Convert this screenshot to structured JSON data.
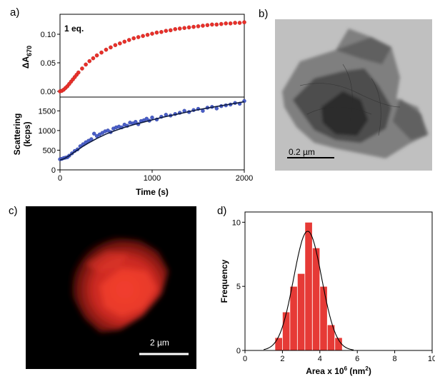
{
  "panels": {
    "a": "a)",
    "b": "b)",
    "c": "c)",
    "d": "d)"
  },
  "chart_data": [
    {
      "id": "a-top",
      "type": "scatter",
      "annotation": "1 eq.",
      "ylabel": "ΔA",
      "ylabel_sub": "670",
      "xlim": [
        0,
        2000
      ],
      "ylim": [
        -0.01,
        0.135
      ],
      "yticks": [
        "0.00",
        "0.05",
        "0.10"
      ],
      "ytick_values": [
        0.0,
        0.05,
        0.1
      ],
      "marker_color": "#e8302a",
      "series": [
        {
          "x": [
            0,
            20,
            40,
            60,
            80,
            100,
            120,
            140,
            160,
            180,
            200,
            240,
            280,
            320,
            360,
            400,
            450,
            500,
            550,
            600,
            650,
            700,
            750,
            800,
            850,
            900,
            950,
            1000,
            1050,
            1100,
            1150,
            1200,
            1250,
            1300,
            1350,
            1400,
            1450,
            1500,
            1550,
            1600,
            1650,
            1700,
            1750,
            1800,
            1850,
            1900,
            1950,
            2000
          ],
          "y": [
            0.0,
            0.001,
            0.003,
            0.006,
            0.009,
            0.013,
            0.017,
            0.021,
            0.025,
            0.029,
            0.033,
            0.04,
            0.047,
            0.053,
            0.058,
            0.063,
            0.068,
            0.073,
            0.077,
            0.081,
            0.084,
            0.087,
            0.09,
            0.093,
            0.095,
            0.097,
            0.099,
            0.101,
            0.103,
            0.104,
            0.106,
            0.107,
            0.109,
            0.11,
            0.111,
            0.112,
            0.113,
            0.114,
            0.115,
            0.116,
            0.117,
            0.117,
            0.118,
            0.119,
            0.119,
            0.12,
            0.12,
            0.121
          ]
        }
      ]
    },
    {
      "id": "a-bottom",
      "type": "scatter",
      "xlabel": "Time (s)",
      "ylabel_line1": "Scattering",
      "ylabel_line2": "(kcps)",
      "xlim": [
        0,
        2000
      ],
      "ylim": [
        0,
        1850
      ],
      "xticks": [
        "0",
        "1000",
        "2000"
      ],
      "xtick_values": [
        0,
        1000,
        2000
      ],
      "yticks": [
        "0",
        "500",
        "1000",
        "1500"
      ],
      "ytick_values": [
        0,
        500,
        1000,
        1500
      ],
      "marker_color": "#4a5fc7",
      "fit_color": "#0d1a40",
      "series": [
        {
          "x": [
            0,
            20,
            40,
            60,
            80,
            100,
            130,
            160,
            190,
            220,
            250,
            280,
            310,
            340,
            370,
            400,
            430,
            460,
            490,
            520,
            550,
            580,
            610,
            640,
            670,
            700,
            730,
            760,
            790,
            820,
            850,
            880,
            910,
            940,
            970,
            1000,
            1050,
            1100,
            1150,
            1200,
            1250,
            1300,
            1350,
            1400,
            1450,
            1500,
            1550,
            1600,
            1650,
            1700,
            1750,
            1800,
            1850,
            1900,
            1950,
            2000
          ],
          "y": [
            270,
            280,
            300,
            310,
            320,
            360,
            420,
            480,
            520,
            600,
            650,
            700,
            740,
            780,
            920,
            860,
            900,
            940,
            980,
            1000,
            960,
            1050,
            1080,
            1100,
            1080,
            1150,
            1120,
            1200,
            1180,
            1220,
            1160,
            1240,
            1260,
            1300,
            1250,
            1330,
            1280,
            1350,
            1400,
            1380,
            1420,
            1450,
            1500,
            1470,
            1520,
            1550,
            1500,
            1580,
            1600,
            1560,
            1620,
            1640,
            1660,
            1700,
            1680,
            1750
          ]
        },
        {
          "fit_x": [
            0,
            50,
            100,
            150,
            200,
            250,
            300,
            400,
            500,
            600,
            700,
            800,
            900,
            1000,
            1100,
            1200,
            1300,
            1400,
            1500,
            1600,
            1700,
            1800,
            1900,
            2000
          ],
          "fit_y": [
            250,
            290,
            360,
            440,
            520,
            600,
            670,
            800,
            910,
            1000,
            1080,
            1150,
            1210,
            1270,
            1330,
            1380,
            1430,
            1480,
            1530,
            1570,
            1610,
            1650,
            1690,
            1730
          ]
        }
      ]
    },
    {
      "id": "d",
      "type": "bar",
      "xlabel": "Area x 10",
      "xlabel_sup": "6",
      "xlabel_tail": " (nm",
      "xlabel_sup2": "2",
      "xlabel_end": ")",
      "ylabel": "Frequency",
      "xlim": [
        0,
        10
      ],
      "ylim": [
        0,
        10.8
      ],
      "xticks": [
        "0",
        "2",
        "4",
        "6",
        "8",
        "10"
      ],
      "xtick_values": [
        0,
        2,
        4,
        6,
        8,
        10
      ],
      "yticks": [
        "0",
        "5",
        "10"
      ],
      "ytick_values": [
        0,
        5,
        10
      ],
      "bar_color": "#e63a36",
      "bar_width": 0.4,
      "bin_centers": [
        1.8,
        2.2,
        2.6,
        3.0,
        3.4,
        3.8,
        4.2,
        4.6,
        5.0
      ],
      "values": [
        1,
        3,
        5,
        6,
        10,
        8,
        5,
        2,
        1
      ],
      "fit_mean": 3.35,
      "fit_sigma": 0.75,
      "fit_amplitude": 9.3
    }
  ],
  "images": {
    "b_scale": "0.2 µm",
    "c_scale": "2 µm"
  }
}
